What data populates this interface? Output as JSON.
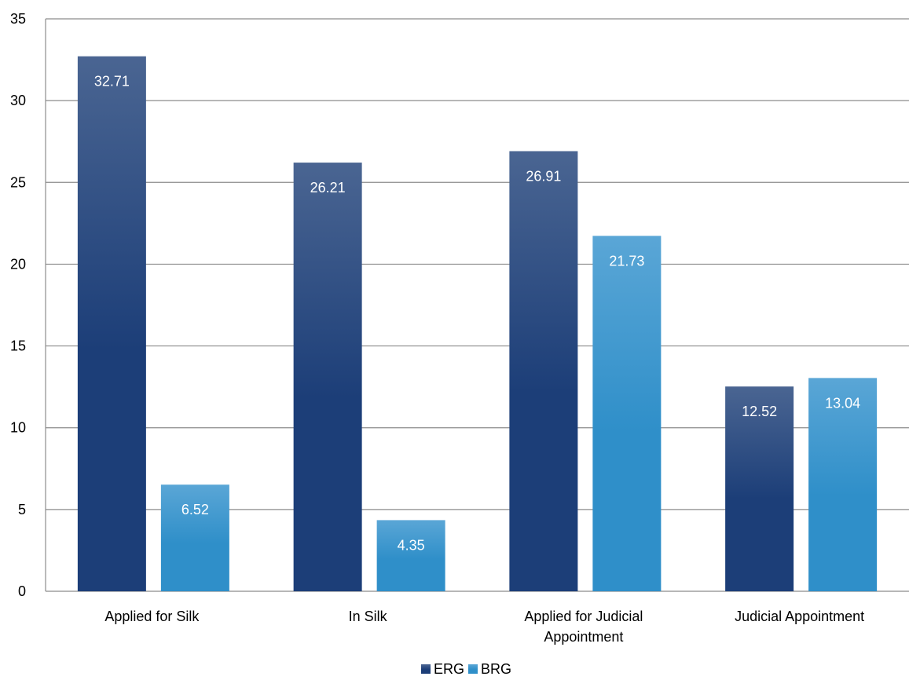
{
  "chart_data": {
    "type": "bar",
    "categories": [
      [
        "Applied for Silk"
      ],
      [
        "In Silk"
      ],
      [
        "Applied for Judicial",
        "Appointment"
      ],
      [
        "Judicial Appointment"
      ]
    ],
    "series": [
      {
        "name": "ERG",
        "values": [
          32.71,
          26.21,
          26.91,
          12.52
        ],
        "color_top": "#4a6592",
        "color_bottom": "#1c3e78"
      },
      {
        "name": "BRG",
        "values": [
          6.52,
          4.35,
          21.73,
          13.04
        ],
        "color_top": "#5aa6d6",
        "color_bottom": "#2f8fc9"
      }
    ],
    "value_labels": [
      [
        "32.71",
        "26.21",
        "26.91",
        "12.52"
      ],
      [
        "6.52",
        "4.35",
        "21.73",
        "13.04"
      ]
    ],
    "ylim": [
      0,
      35
    ],
    "y_ticks": [
      "0",
      "5",
      "10",
      "15",
      "20",
      "25",
      "30",
      "35"
    ],
    "grid": true,
    "gridline_color": "#8c8c8c",
    "legend_position": "bottom-center",
    "xlabel": "",
    "ylabel": "",
    "title": ""
  }
}
